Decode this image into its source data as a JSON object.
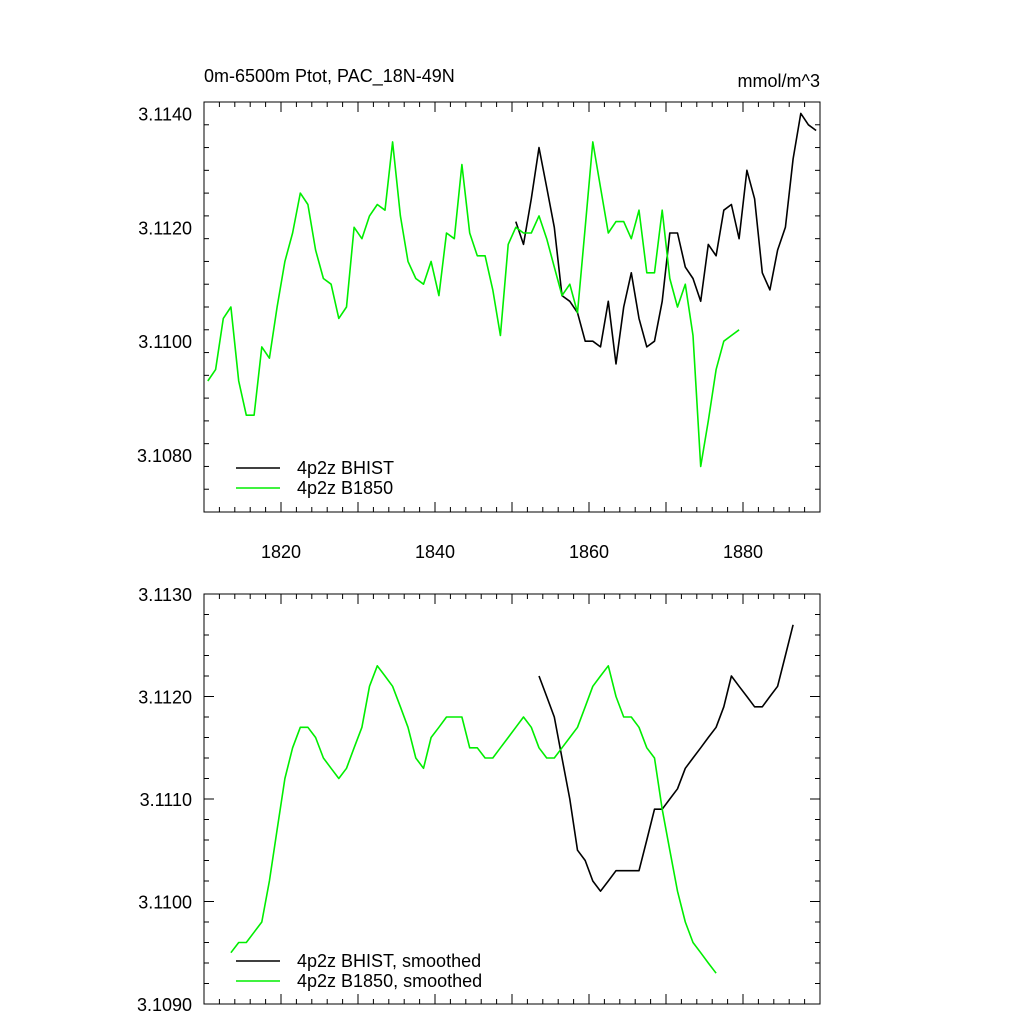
{
  "chart_data": [
    {
      "type": "line",
      "title": "0m-6500m Ptot, PAC_18N-49N",
      "units": "mmol/m^3",
      "xlim": [
        1810,
        1890
      ],
      "ylim": [
        3.107,
        3.1142
      ],
      "yticks": [
        3.108,
        3.11,
        3.112,
        3.114
      ],
      "ytick_labels": [
        "3.1080",
        "3.1100",
        "3.1120",
        "3.1140"
      ],
      "xticks": [
        1820,
        1840,
        1860,
        1880
      ],
      "xtick_labels": [
        "1820",
        "1840",
        "1860",
        "1880"
      ],
      "legend_position": "bottom-left",
      "series": [
        {
          "name": "4p2z BHIST",
          "color": "#000000",
          "x": [
            1850.5,
            1851.5,
            1852.5,
            1853.5,
            1854.5,
            1855.5,
            1856.5,
            1857.5,
            1858.5,
            1859.5,
            1860.5,
            1861.5,
            1862.5,
            1863.5,
            1864.5,
            1865.5,
            1866.5,
            1867.5,
            1868.5,
            1869.5,
            1870.5,
            1871.5,
            1872.5,
            1873.5,
            1874.5,
            1875.5,
            1876.5,
            1877.5,
            1878.5,
            1879.5,
            1880.5,
            1881.5,
            1882.5,
            1883.5,
            1884.5,
            1885.5,
            1886.5,
            1887.5,
            1888.5,
            1889.5
          ],
          "y": [
            3.1121,
            3.1117,
            3.1125,
            3.1134,
            3.1127,
            3.112,
            3.1108,
            3.1107,
            3.1105,
            3.11,
            3.11,
            3.1099,
            3.1107,
            3.1096,
            3.1106,
            3.1112,
            3.1104,
            3.1099,
            3.11,
            3.1107,
            3.1119,
            3.1119,
            3.1113,
            3.1111,
            3.1107,
            3.1117,
            3.1115,
            3.1123,
            3.1124,
            3.1118,
            3.113,
            3.1125,
            3.1112,
            3.1109,
            3.1116,
            3.112,
            3.1132,
            3.114,
            3.1138,
            3.1137
          ]
        },
        {
          "name": "4p2z B1850",
          "color": "#00ee00",
          "x": [
            1810.5,
            1811.5,
            1812.5,
            1813.5,
            1814.5,
            1815.5,
            1816.5,
            1817.5,
            1818.5,
            1819.5,
            1820.5,
            1821.5,
            1822.5,
            1823.5,
            1824.5,
            1825.5,
            1826.5,
            1827.5,
            1828.5,
            1829.5,
            1830.5,
            1831.5,
            1832.5,
            1833.5,
            1834.5,
            1835.5,
            1836.5,
            1837.5,
            1838.5,
            1839.5,
            1840.5,
            1841.5,
            1842.5,
            1843.5,
            1844.5,
            1845.5,
            1846.5,
            1847.5,
            1848.5,
            1849.5,
            1850.5,
            1851.5,
            1852.5,
            1853.5,
            1854.5,
            1855.5,
            1856.5,
            1857.5,
            1858.5,
            1859.5,
            1860.5,
            1861.5,
            1862.5,
            1863.5,
            1864.5,
            1865.5,
            1866.5,
            1867.5,
            1868.5,
            1869.5,
            1870.5,
            1871.5,
            1872.5,
            1873.5,
            1874.5,
            1875.5,
            1876.5,
            1877.5,
            1878.5,
            1879.5
          ],
          "y": [
            3.1093,
            3.1095,
            3.1104,
            3.1106,
            3.1093,
            3.1087,
            3.1087,
            3.1099,
            3.1097,
            3.1106,
            3.1114,
            3.1119,
            3.1126,
            3.1124,
            3.1116,
            3.1111,
            3.111,
            3.1104,
            3.1106,
            3.112,
            3.1118,
            3.1122,
            3.1124,
            3.1123,
            3.1135,
            3.1122,
            3.1114,
            3.1111,
            3.111,
            3.1114,
            3.1108,
            3.1119,
            3.1118,
            3.1131,
            3.1119,
            3.1115,
            3.1115,
            3.1109,
            3.1101,
            3.1117,
            3.112,
            3.1119,
            3.1119,
            3.1122,
            3.1118,
            3.1113,
            3.1108,
            3.111,
            3.1105,
            3.112,
            3.1135,
            3.1127,
            3.1119,
            3.1121,
            3.1121,
            3.1118,
            3.1123,
            3.1112,
            3.1112,
            3.1123,
            3.1111,
            3.1106,
            3.111,
            3.1101,
            3.1078,
            3.1086,
            3.1095,
            3.11,
            3.1101,
            3.1102
          ]
        }
      ]
    },
    {
      "type": "line",
      "title": "",
      "xlim": [
        1810,
        1890
      ],
      "ylim": [
        3.109,
        3.113
      ],
      "yticks": [
        3.109,
        3.11,
        3.111,
        3.112,
        3.113
      ],
      "ytick_labels": [
        "3.1090",
        "3.1100",
        "3.1110",
        "3.1120",
        "3.1130"
      ],
      "legend_position": "bottom-left",
      "series": [
        {
          "name": "4p2z BHIST, smoothed",
          "color": "#000000",
          "x": [
            1853.5,
            1854.5,
            1855.5,
            1856.5,
            1857.5,
            1858.5,
            1859.5,
            1860.5,
            1861.5,
            1862.5,
            1863.5,
            1864.5,
            1865.5,
            1866.5,
            1867.5,
            1868.5,
            1869.5,
            1870.5,
            1871.5,
            1872.5,
            1873.5,
            1874.5,
            1875.5,
            1876.5,
            1877.5,
            1878.5,
            1879.5,
            1880.5,
            1881.5,
            1882.5,
            1883.5,
            1884.5,
            1885.5,
            1886.5
          ],
          "y": [
            3.1122,
            3.112,
            3.1118,
            3.1114,
            3.111,
            3.1105,
            3.1104,
            3.1102,
            3.1101,
            3.1102,
            3.1103,
            3.1103,
            3.1103,
            3.1103,
            3.1106,
            3.1109,
            3.1109,
            3.111,
            3.1111,
            3.1113,
            3.1114,
            3.1115,
            3.1116,
            3.1117,
            3.1119,
            3.1122,
            3.1121,
            3.112,
            3.1119,
            3.1119,
            3.112,
            3.1121,
            3.1124,
            3.1127
          ]
        },
        {
          "name": "4p2z B1850, smoothed",
          "color": "#00ee00",
          "x": [
            1813.5,
            1814.5,
            1815.5,
            1816.5,
            1817.5,
            1818.5,
            1819.5,
            1820.5,
            1821.5,
            1822.5,
            1823.5,
            1824.5,
            1825.5,
            1826.5,
            1827.5,
            1828.5,
            1829.5,
            1830.5,
            1831.5,
            1832.5,
            1833.5,
            1834.5,
            1835.5,
            1836.5,
            1837.5,
            1838.5,
            1839.5,
            1840.5,
            1841.5,
            1842.5,
            1843.5,
            1844.5,
            1845.5,
            1846.5,
            1847.5,
            1848.5,
            1849.5,
            1850.5,
            1851.5,
            1852.5,
            1853.5,
            1854.5,
            1855.5,
            1856.5,
            1857.5,
            1858.5,
            1859.5,
            1860.5,
            1861.5,
            1862.5,
            1863.5,
            1864.5,
            1865.5,
            1866.5,
            1867.5,
            1868.5,
            1869.5,
            1870.5,
            1871.5,
            1872.5,
            1873.5,
            1874.5,
            1875.5,
            1876.5
          ],
          "y": [
            3.1095,
            3.1096,
            3.1096,
            3.1097,
            3.1098,
            3.1102,
            3.1107,
            3.1112,
            3.1115,
            3.1117,
            3.1117,
            3.1116,
            3.1114,
            3.1113,
            3.1112,
            3.1113,
            3.1115,
            3.1117,
            3.1121,
            3.1123,
            3.1122,
            3.1121,
            3.1119,
            3.1117,
            3.1114,
            3.1113,
            3.1116,
            3.1117,
            3.1118,
            3.1118,
            3.1118,
            3.1115,
            3.1115,
            3.1114,
            3.1114,
            3.1115,
            3.1116,
            3.1117,
            3.1118,
            3.1117,
            3.1115,
            3.1114,
            3.1114,
            3.1115,
            3.1116,
            3.1117,
            3.1119,
            3.1121,
            3.1122,
            3.1123,
            3.112,
            3.1118,
            3.1118,
            3.1117,
            3.1115,
            3.1114,
            3.1109,
            3.1105,
            3.1101,
            3.1098,
            3.1096,
            3.1095,
            3.1094,
            3.1093
          ]
        }
      ]
    }
  ]
}
